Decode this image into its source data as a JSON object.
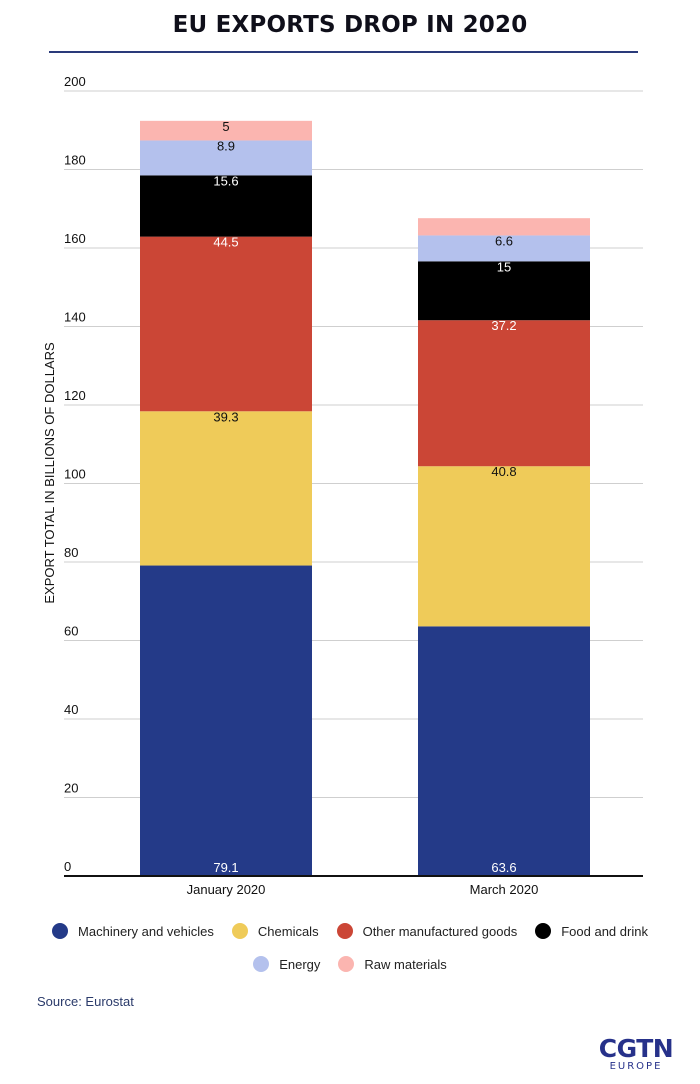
{
  "chart_data": {
    "type": "bar",
    "stacked": true,
    "title": "EU EXPORTS DROP IN 2020",
    "xlabel": "",
    "ylabel": "EXPORT TOTAL IN BILLIONS OF DOLLARS",
    "ylim": [
      0,
      200
    ],
    "yticks": [
      0,
      20,
      40,
      60,
      80,
      100,
      120,
      140,
      160,
      180,
      200
    ],
    "grid": true,
    "legend_position": "bottom",
    "categories": [
      "January 2020",
      "March 2020"
    ],
    "series": [
      {
        "name": "Machinery and vehicles",
        "color": "#243a88",
        "values": [
          79.1,
          63.6
        ],
        "labels": [
          "79.1",
          "63.6"
        ],
        "label_color": "#ffffff"
      },
      {
        "name": "Chemicals",
        "color": "#efcb59",
        "values": [
          39.3,
          40.8
        ],
        "labels": [
          "39.3",
          "40.8"
        ],
        "label_color": "#111111"
      },
      {
        "name": "Other manufactured goods",
        "color": "#cb4636",
        "values": [
          44.5,
          37.2
        ],
        "labels": [
          "44.5",
          "37.2"
        ],
        "label_color": "#ffffff"
      },
      {
        "name": "Food and drink",
        "color": "#000000",
        "values": [
          15.6,
          15
        ],
        "labels": [
          "15.6",
          "15"
        ],
        "label_color": "#ffffff"
      },
      {
        "name": "Energy",
        "color": "#b4c1ed",
        "values": [
          8.9,
          6.6
        ],
        "labels": [
          "8.9",
          "6.6"
        ],
        "label_color": "#111111"
      },
      {
        "name": "Raw materials",
        "color": "#fbb5b0",
        "values": [
          5,
          4.4
        ],
        "labels": [
          "5",
          ""
        ],
        "label_color": "#111111"
      }
    ]
  },
  "legend": {
    "rows": [
      [
        "Machinery and vehicles",
        "Chemicals",
        "Other manufactured goods",
        "Food and drink"
      ],
      [
        "Energy",
        "Raw materials"
      ]
    ]
  },
  "source": "Source: Eurostat",
  "logo": {
    "main": "CGTN",
    "sub": "EUROPE"
  }
}
